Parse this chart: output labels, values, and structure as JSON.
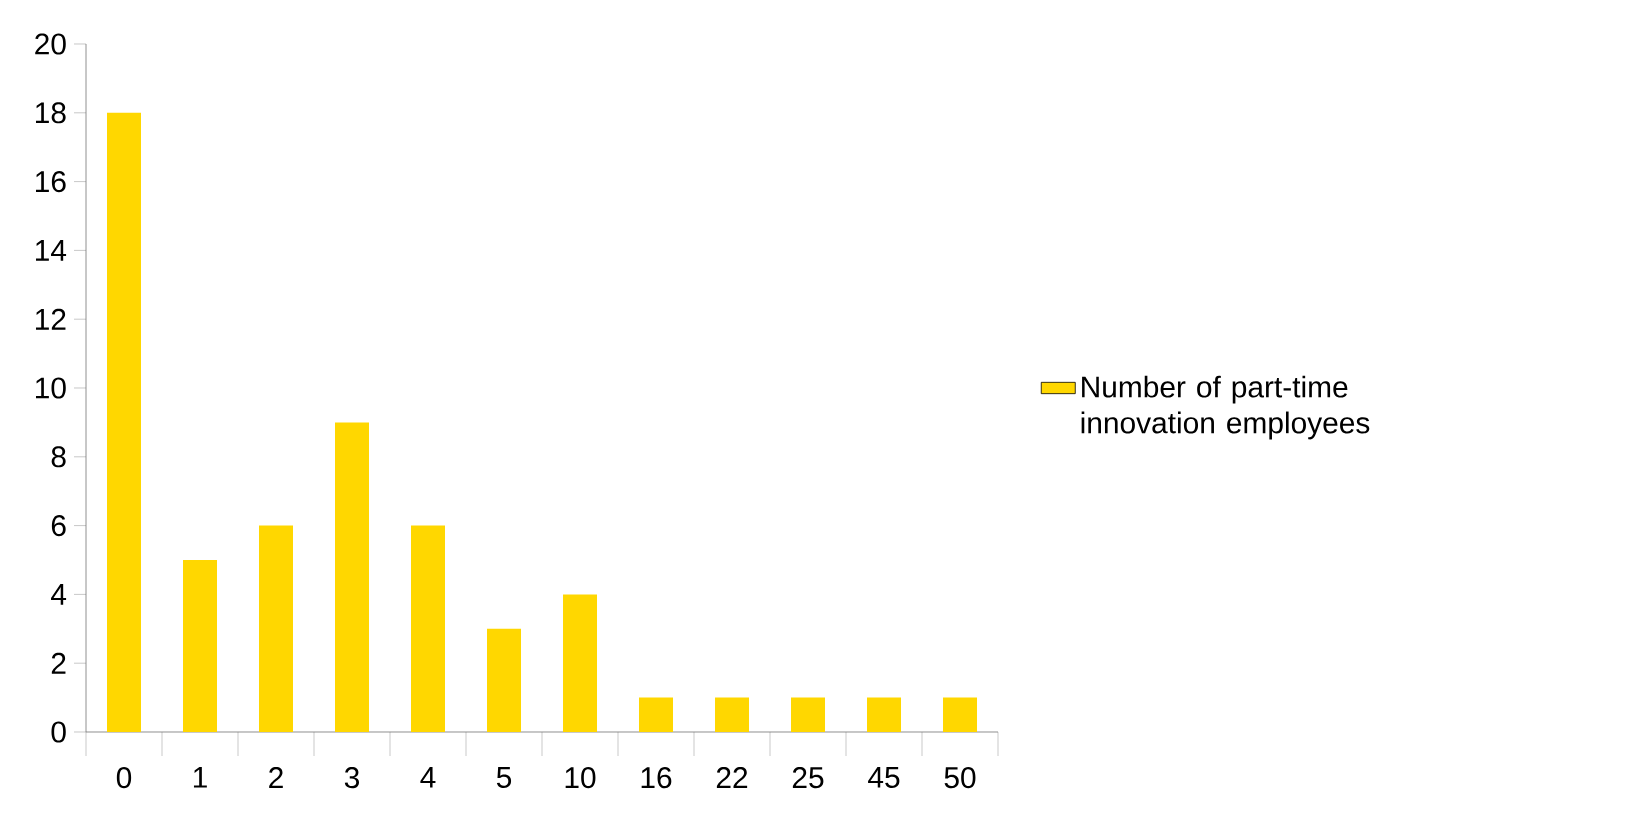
{
  "chart_data": {
    "type": "bar",
    "categories": [
      "0",
      "1",
      "2",
      "3",
      "4",
      "5",
      "10",
      "16",
      "22",
      "25",
      "45",
      "50"
    ],
    "series": [
      {
        "name": "Number of part-time innovation employees",
        "color": "#ffd700",
        "values": [
          18,
          5,
          6,
          9,
          6,
          3,
          4,
          1,
          1,
          1,
          1,
          1
        ]
      }
    ],
    "ylim": [
      0,
      20
    ],
    "yticks": [
      0,
      2,
      4,
      6,
      8,
      10,
      12,
      14,
      16,
      18,
      20
    ],
    "legend": "right"
  }
}
